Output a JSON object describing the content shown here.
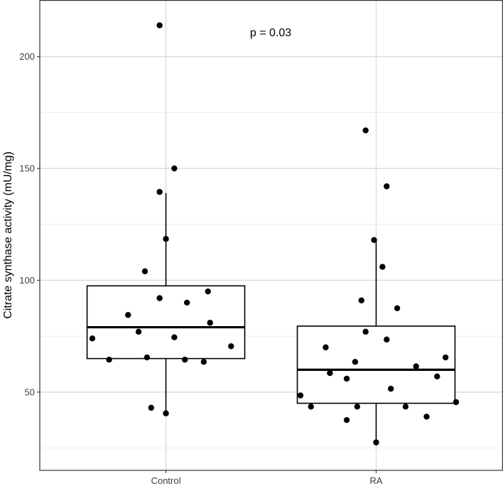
{
  "chart_data": {
    "type": "box",
    "title": "",
    "xlabel": "",
    "ylabel": "Citrate synthase activity (mU/mg)",
    "annotation": "p = 0.03",
    "ylim": [
      15,
      225
    ],
    "y_ticks": [
      50,
      100,
      150,
      200
    ],
    "y_tick_labels": [
      "50",
      "100",
      "150",
      "200"
    ],
    "categories": [
      "Control",
      "RA"
    ],
    "boxes": [
      {
        "name": "Control",
        "q1": 65,
        "median": 79,
        "q3": 97.5,
        "whisker_low": 40.5,
        "whisker_high": 139,
        "points": [
          {
            "x": -0.35,
            "y": 74
          },
          {
            "x": -0.27,
            "y": 64.5
          },
          {
            "x": -0.18,
            "y": 84.5
          },
          {
            "x": -0.13,
            "y": 77
          },
          {
            "x": -0.1,
            "y": 104
          },
          {
            "x": -0.09,
            "y": 65.5
          },
          {
            "x": -0.07,
            "y": 43
          },
          {
            "x": -0.03,
            "y": 214
          },
          {
            "x": -0.03,
            "y": 139.5
          },
          {
            "x": -0.03,
            "y": 92
          },
          {
            "x": 0.0,
            "y": 40.5
          },
          {
            "x": 0.0,
            "y": 118.5
          },
          {
            "x": 0.04,
            "y": 74.5
          },
          {
            "x": 0.04,
            "y": 150
          },
          {
            "x": 0.09,
            "y": 64.5
          },
          {
            "x": 0.1,
            "y": 90
          },
          {
            "x": 0.18,
            "y": 63.5
          },
          {
            "x": 0.2,
            "y": 95
          },
          {
            "x": 0.21,
            "y": 81
          },
          {
            "x": 0.31,
            "y": 70.5
          }
        ]
      },
      {
        "name": "RA",
        "q1": 45,
        "median": 60,
        "q3": 79.5,
        "whisker_low": 27.5,
        "whisker_high": 118,
        "points": [
          {
            "x": -0.36,
            "y": 48.5
          },
          {
            "x": -0.31,
            "y": 43.5
          },
          {
            "x": -0.24,
            "y": 70
          },
          {
            "x": -0.22,
            "y": 58.5
          },
          {
            "x": -0.14,
            "y": 37.5
          },
          {
            "x": -0.14,
            "y": 56
          },
          {
            "x": -0.1,
            "y": 63.5
          },
          {
            "x": -0.09,
            "y": 43.5
          },
          {
            "x": -0.07,
            "y": 91
          },
          {
            "x": -0.05,
            "y": 77
          },
          {
            "x": -0.05,
            "y": 167
          },
          {
            "x": -0.01,
            "y": 118
          },
          {
            "x": 0.0,
            "y": 27.5
          },
          {
            "x": 0.03,
            "y": 106
          },
          {
            "x": 0.05,
            "y": 73.5
          },
          {
            "x": 0.05,
            "y": 142
          },
          {
            "x": 0.07,
            "y": 51.5
          },
          {
            "x": 0.1,
            "y": 87.5
          },
          {
            "x": 0.14,
            "y": 43.5
          },
          {
            "x": 0.19,
            "y": 61.5
          },
          {
            "x": 0.24,
            "y": 39
          },
          {
            "x": 0.29,
            "y": 57
          },
          {
            "x": 0.33,
            "y": 65.5
          },
          {
            "x": 0.38,
            "y": 45.5
          }
        ]
      }
    ],
    "grid": true,
    "legend": "none"
  }
}
